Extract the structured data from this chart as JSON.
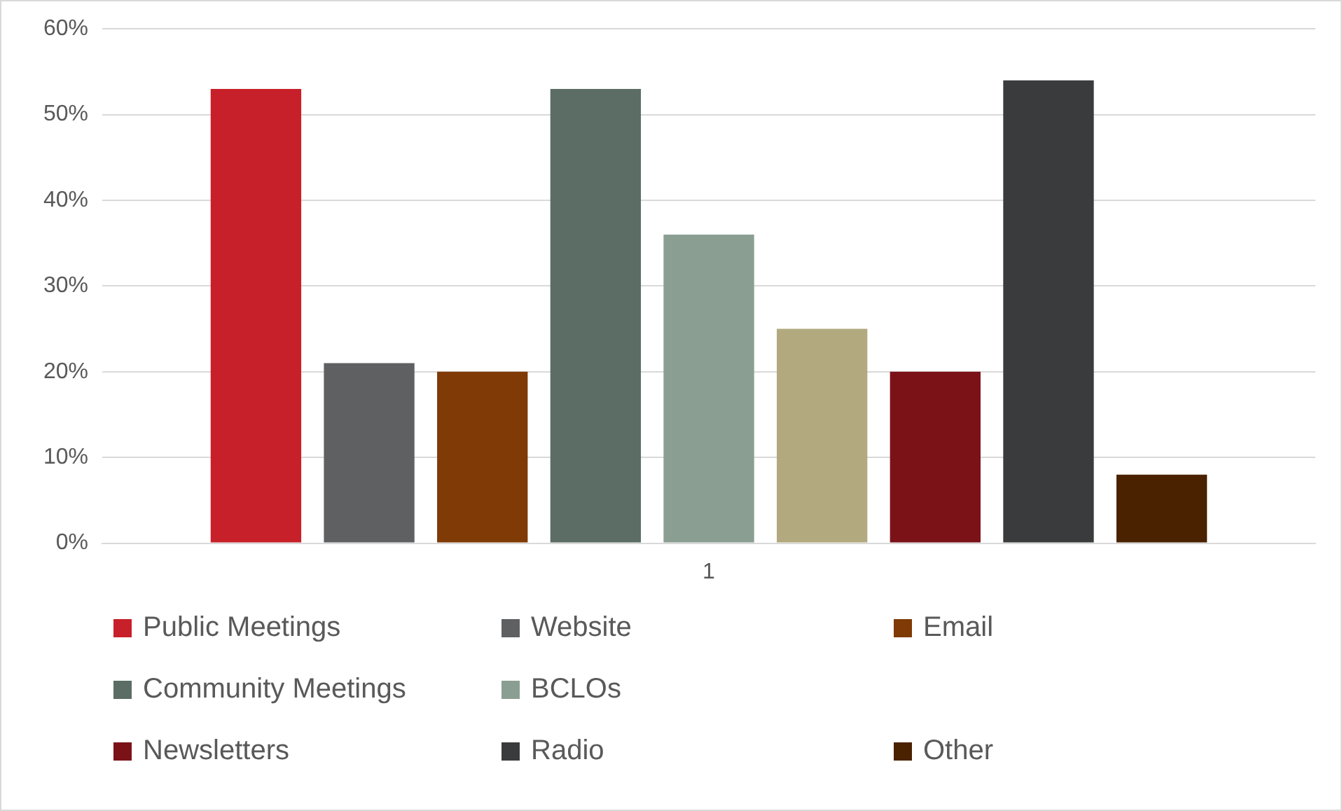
{
  "chart_data": {
    "type": "bar",
    "categories": [
      "1"
    ],
    "series": [
      {
        "name": "Public Meetings",
        "color": "#c8202a",
        "values": [
          53
        ]
      },
      {
        "name": "Website",
        "color": "#5f6062",
        "values": [
          21
        ]
      },
      {
        "name": "Email",
        "color": "#7f3a05",
        "values": [
          20
        ]
      },
      {
        "name": "Community Meetings",
        "color": "#5b6d64",
        "values": [
          53
        ]
      },
      {
        "name": "BCLOs",
        "color": "#8a9e92",
        "values": [
          36
        ]
      },
      {
        "color": "#b2a97f",
        "values": [
          25
        ]
      },
      {
        "name": "Newsletters",
        "color": "#7b1218",
        "values": [
          20
        ]
      },
      {
        "name": "Radio",
        "color": "#3a3b3d",
        "values": [
          54
        ]
      },
      {
        "name": "Other",
        "color": "#4a2200",
        "values": [
          8
        ]
      }
    ],
    "ylim": [
      0,
      60
    ],
    "yticks": [
      {
        "value": 0,
        "label": "0%"
      },
      {
        "value": 10,
        "label": "10%"
      },
      {
        "value": 20,
        "label": "20%"
      },
      {
        "value": 30,
        "label": "30%"
      },
      {
        "value": 40,
        "label": "40%"
      },
      {
        "value": 50,
        "label": "50%"
      },
      {
        "value": 60,
        "label": "60%"
      }
    ],
    "grid": "y",
    "legend": "bottom"
  }
}
